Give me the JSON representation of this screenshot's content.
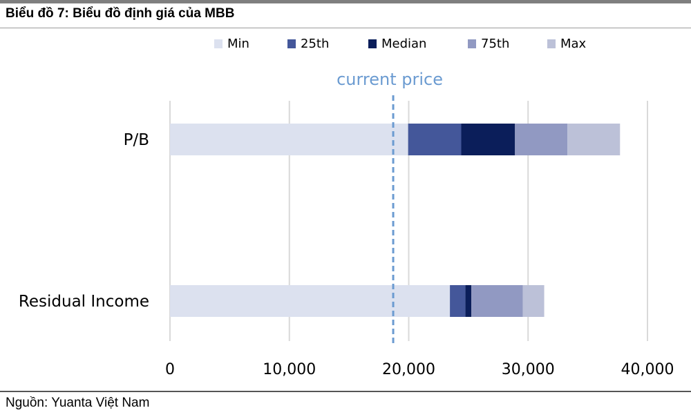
{
  "header": {
    "title": "Biểu đồ 7:  Biểu đồ định giá của MBB"
  },
  "footer": {
    "source": "Nguồn: Yuanta Việt Nam"
  },
  "chart_data": {
    "type": "bar",
    "orientation": "horizontal",
    "stacked": true,
    "categories": [
      "P/B",
      "Residual Income"
    ],
    "series": [
      {
        "name": "Min",
        "values": [
          19950,
          23450
        ],
        "color": "#dce1ef"
      },
      {
        "name": "25th",
        "values": [
          4450,
          1300
        ],
        "color": "#44579a"
      },
      {
        "name": "Median",
        "values": [
          4500,
          500
        ],
        "color": "#0b1e5a"
      },
      {
        "name": "75th",
        "values": [
          4400,
          4300
        ],
        "color": "#9199c2"
      },
      {
        "name": "Max",
        "values": [
          4400,
          1800
        ],
        "color": "#bcc1d8"
      }
    ],
    "reference_line": {
      "label": "current price",
      "value": 18700,
      "color": "#6b9bd1"
    },
    "xlim": [
      0,
      40000
    ],
    "xticks": [
      {
        "value": 0,
        "label": "0"
      },
      {
        "value": 10000,
        "label": "10,000"
      },
      {
        "value": 20000,
        "label": "20,000"
      },
      {
        "value": 30000,
        "label": "30,000"
      },
      {
        "value": 40000,
        "label": "40,000"
      }
    ],
    "grid": true,
    "legend_position": "top"
  }
}
